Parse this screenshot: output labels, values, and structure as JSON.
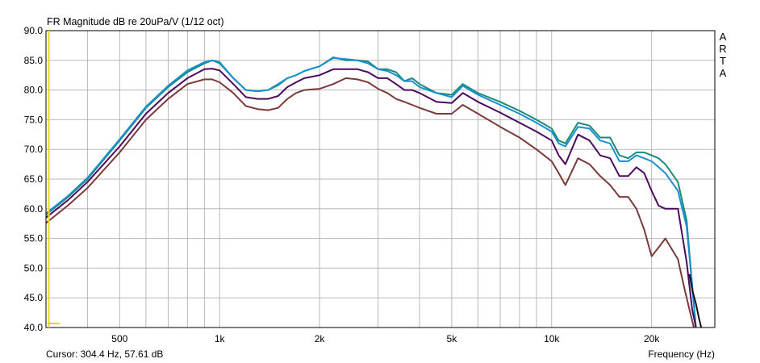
{
  "chart_data": {
    "type": "line",
    "title": "FR Magnitude dB re 20uPa/V (1/12 oct)",
    "side_label": "ARTA",
    "xlabel": "Frequency (Hz)",
    "cursor_text": "Cursor: 304.4 Hz, 57.61 dB",
    "x_scale": "log",
    "xlim": [
      300,
      31000
    ],
    "ylim": [
      40,
      90
    ],
    "y_ticks": [
      40,
      45,
      50,
      55,
      60,
      65,
      70,
      75,
      80,
      85,
      90
    ],
    "y_tick_labels": [
      "40.0",
      "45.0",
      "50.0",
      "55.0",
      "60.0",
      "65.0",
      "70.0",
      "75.0",
      "80.0",
      "85.0",
      "90.0"
    ],
    "x_tick_values": [
      500,
      1000,
      2000,
      5000,
      10000,
      20000
    ],
    "x_tick_labels": [
      "500",
      "1k",
      "2k",
      "5k",
      "10k",
      "20k"
    ],
    "x_grid": [
      400,
      500,
      600,
      700,
      800,
      900,
      1000,
      2000,
      3000,
      4000,
      5000,
      6000,
      7000,
      8000,
      9000,
      10000,
      20000
    ],
    "grid": true,
    "cursor_hz": 304.4,
    "cursor_db": 57.61,
    "series": [
      {
        "color": "#1a8a7a",
        "x": [
          300,
          350,
          400,
          500,
          600,
          700,
          800,
          900,
          950,
          1000,
          1100,
          1200,
          1300,
          1400,
          1500,
          1600,
          1700,
          1800,
          2000,
          2200,
          2400,
          2600,
          2800,
          3000,
          3200,
          3400,
          3600,
          3800,
          4000,
          4500,
          5000,
          5400,
          6000,
          7000,
          8000,
          9000,
          10000,
          10500,
          11000,
          12000,
          13000,
          14000,
          15000,
          16000,
          17000,
          18000,
          19000,
          20000,
          21000,
          22000,
          24000,
          25500,
          26500,
          27200
        ],
        "y": [
          59,
          62,
          65,
          71.5,
          77,
          80.5,
          83,
          84.5,
          85,
          84.5,
          82,
          80,
          79.8,
          80,
          80.8,
          82,
          82.5,
          83.2,
          84,
          85.5,
          85,
          85,
          84.8,
          83.5,
          83.5,
          83,
          81.5,
          82,
          81,
          79.5,
          79.2,
          81,
          79.5,
          78,
          76.5,
          75,
          73.5,
          71.5,
          71,
          74.5,
          74,
          72,
          72,
          69,
          68.5,
          69.5,
          69.5,
          69,
          68.5,
          67.5,
          64.5,
          58,
          47,
          40
        ]
      },
      {
        "color": "#1a8fd0",
        "x": [
          300,
          350,
          400,
          500,
          600,
          700,
          800,
          900,
          950,
          1000,
          1100,
          1200,
          1300,
          1400,
          1500,
          1600,
          1700,
          1800,
          2000,
          2200,
          2400,
          2600,
          2800,
          3000,
          3200,
          3400,
          3600,
          3800,
          4000,
          4500,
          5000,
          5400,
          6000,
          7000,
          8000,
          9000,
          10000,
          10500,
          11000,
          12000,
          13000,
          14000,
          15000,
          16000,
          17000,
          18000,
          19000,
          20000,
          21000,
          22000,
          24000,
          25500,
          26500,
          27200
        ],
        "y": [
          59.2,
          62.2,
          65.2,
          71.7,
          77.2,
          80.7,
          83.3,
          84.7,
          85,
          84.7,
          82,
          80,
          79.8,
          80,
          81,
          82,
          82.5,
          83.2,
          84,
          85.4,
          85.2,
          85,
          84.5,
          83.5,
          83.2,
          82.5,
          81.5,
          81.5,
          80.5,
          79.5,
          78.8,
          80.7,
          79.2,
          77.5,
          76,
          74.5,
          73,
          71,
          70.5,
          73.8,
          73.5,
          71.5,
          71,
          68,
          68,
          69,
          68.5,
          68,
          67,
          66,
          63,
          57,
          47,
          40
        ]
      },
      {
        "color": "#4b0a5e",
        "x": [
          300,
          350,
          400,
          500,
          600,
          700,
          800,
          900,
          950,
          1000,
          1100,
          1200,
          1300,
          1400,
          1500,
          1600,
          1700,
          1800,
          2000,
          2200,
          2400,
          2600,
          2800,
          3000,
          3200,
          3400,
          3600,
          3800,
          4000,
          4500,
          5000,
          5400,
          6000,
          7000,
          8000,
          9000,
          10000,
          10500,
          11000,
          12000,
          13000,
          14000,
          15000,
          16000,
          17000,
          18000,
          19000,
          20000,
          21000,
          22000,
          24000,
          25500,
          26500,
          27200
        ],
        "y": [
          58.5,
          61.5,
          64.5,
          70.5,
          76,
          79.5,
          82,
          83.5,
          83.6,
          83.3,
          81,
          78.8,
          78.5,
          78.5,
          79,
          80.5,
          81.3,
          82,
          82.5,
          83.5,
          83.5,
          83.5,
          83,
          82,
          82,
          81,
          80,
          80,
          79.5,
          78,
          77.8,
          79.5,
          78,
          76.2,
          74.5,
          73,
          71.5,
          69,
          67.5,
          72.5,
          71.5,
          69,
          68.5,
          65.5,
          65.5,
          67,
          66,
          63,
          60.5,
          60,
          60,
          51,
          43,
          40
        ]
      },
      {
        "color": "#7b3a3a",
        "x": [
          300,
          350,
          400,
          500,
          600,
          700,
          800,
          900,
          950,
          1000,
          1100,
          1200,
          1300,
          1400,
          1500,
          1600,
          1700,
          1800,
          2000,
          2200,
          2400,
          2600,
          2800,
          3000,
          3200,
          3400,
          3600,
          3800,
          4000,
          4500,
          5000,
          5400,
          6000,
          7000,
          8000,
          9000,
          10000,
          10500,
          11000,
          12000,
          13000,
          14000,
          15000,
          16000,
          17000,
          18000,
          19000,
          20000,
          21000,
          22000,
          24000,
          25000,
          26000,
          26800
        ],
        "y": [
          57.6,
          60.6,
          63.5,
          69.5,
          75,
          78.5,
          81,
          81.8,
          81.8,
          81.3,
          79.5,
          77.3,
          76.8,
          76.6,
          77,
          78.5,
          79.5,
          80,
          80.2,
          81,
          82,
          81.8,
          81.3,
          80.2,
          79.5,
          78.5,
          78,
          77.5,
          77,
          76,
          76,
          77.5,
          76,
          73.8,
          72,
          70,
          68,
          66,
          64,
          68.5,
          67.5,
          65.5,
          64,
          62,
          62,
          60,
          56.5,
          52,
          53.5,
          55,
          51.5,
          47,
          43,
          40
        ]
      },
      {
        "color": "#111111",
        "x": [
          26000,
          26600,
          27200,
          27800,
          28200
        ],
        "y": [
          49,
          46,
          44,
          41.5,
          40
        ]
      }
    ]
  }
}
